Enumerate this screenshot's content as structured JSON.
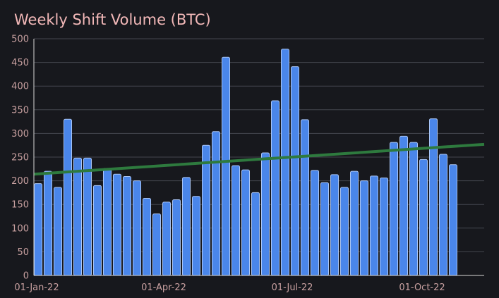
{
  "title": "Weekly Shift Volume (BTC)",
  "colors": {
    "background": "#17181d",
    "bar": "#4a86ea",
    "bar_edge": "#a9c5f5",
    "trend": "#2e7a3e",
    "grid": "#44464e",
    "title": "#f2b8b8",
    "tick": "#c8a0a0"
  },
  "chart_data": {
    "type": "bar",
    "title": "Weekly Shift Volume (BTC)",
    "xlabel": "",
    "ylabel": "",
    "ylim": [
      0,
      500
    ],
    "yticks": [
      0,
      50,
      100,
      150,
      200,
      250,
      300,
      350,
      400,
      450,
      500
    ],
    "grid": "horizontal",
    "x_start": "2022-01-02",
    "week_days": 7,
    "x_range": [
      "2021-12-30",
      "2022-11-14"
    ],
    "xticks": [
      {
        "date": "2022-01-01",
        "label": "01-Jan-22"
      },
      {
        "date": "2022-04-01",
        "label": "01-Apr-22"
      },
      {
        "date": "2022-07-01",
        "label": "01-Jul-22"
      },
      {
        "date": "2022-10-01",
        "label": "01-Oct-22"
      }
    ],
    "values": [
      194,
      220,
      186,
      330,
      248,
      248,
      190,
      226,
      214,
      209,
      200,
      163,
      130,
      155,
      160,
      207,
      167,
      275,
      304,
      461,
      232,
      223,
      175,
      259,
      369,
      478,
      441,
      329,
      222,
      196,
      213,
      186,
      220,
      200,
      210,
      206,
      281,
      294,
      281,
      245,
      331,
      256,
      234
    ],
    "trend_line": {
      "start": 214,
      "end": 277
    }
  }
}
